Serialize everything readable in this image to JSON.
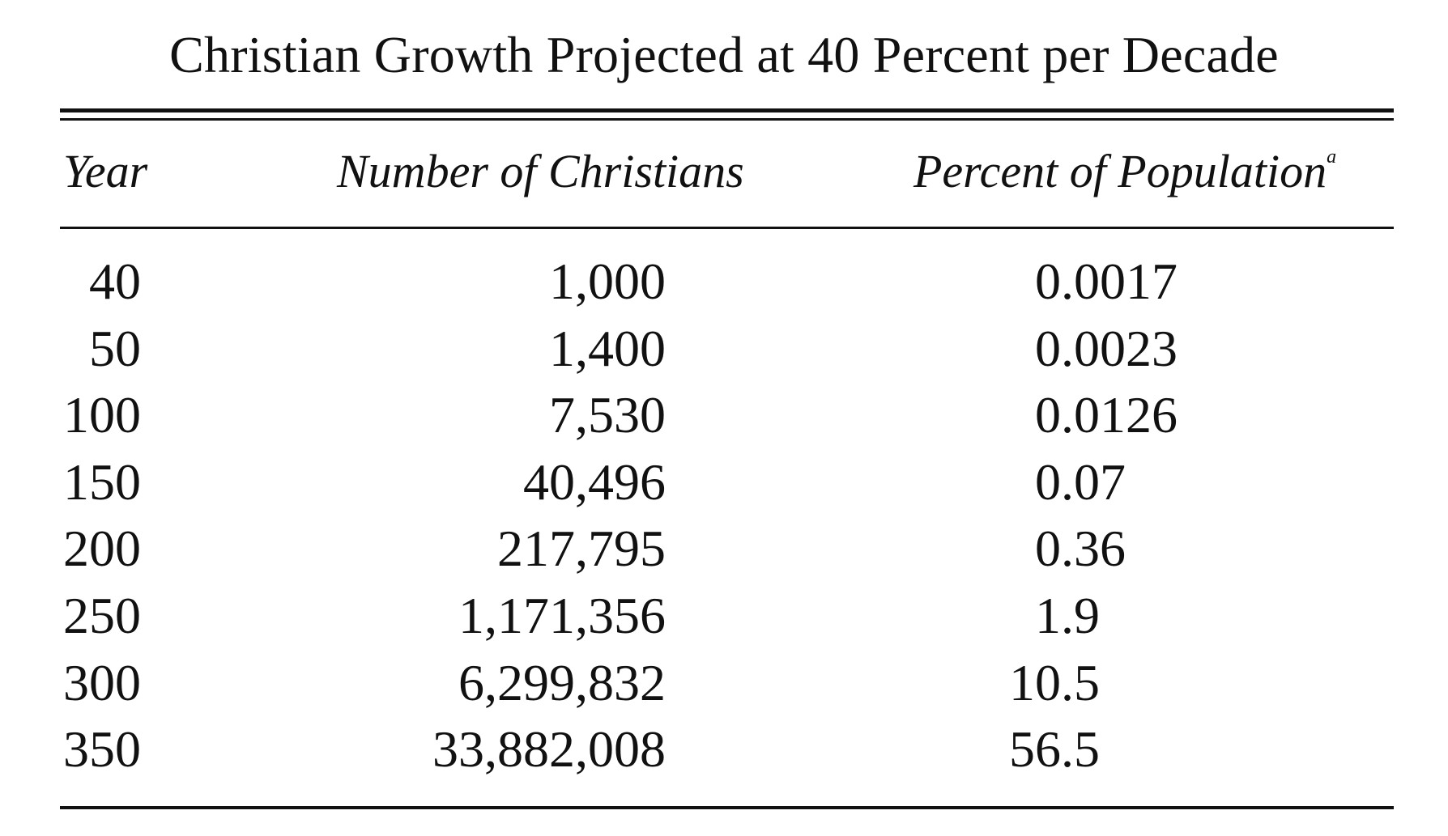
{
  "table": {
    "title": "Christian Growth Projected at 40 Percent per Decade",
    "headers": {
      "year": "Year",
      "number": "Number of Christians",
      "percent": "Percent of Population",
      "percent_footnote": "a"
    },
    "rows": [
      {
        "year": "40",
        "number": "1,000",
        "percent": "0.0017"
      },
      {
        "year": "50",
        "number": "1,400",
        "percent": "0.0023"
      },
      {
        "year": "100",
        "number": "7,530",
        "percent": "0.0126"
      },
      {
        "year": "150",
        "number": "40,496",
        "percent": "0.07"
      },
      {
        "year": "200",
        "number": "217,795",
        "percent": "0.36"
      },
      {
        "year": "250",
        "number": "1,171,356",
        "percent": "1.9"
      },
      {
        "year": "300",
        "number": "6,299,832",
        "percent": "10.5"
      },
      {
        "year": "350",
        "number": "33,882,008",
        "percent": "56.5"
      }
    ]
  }
}
